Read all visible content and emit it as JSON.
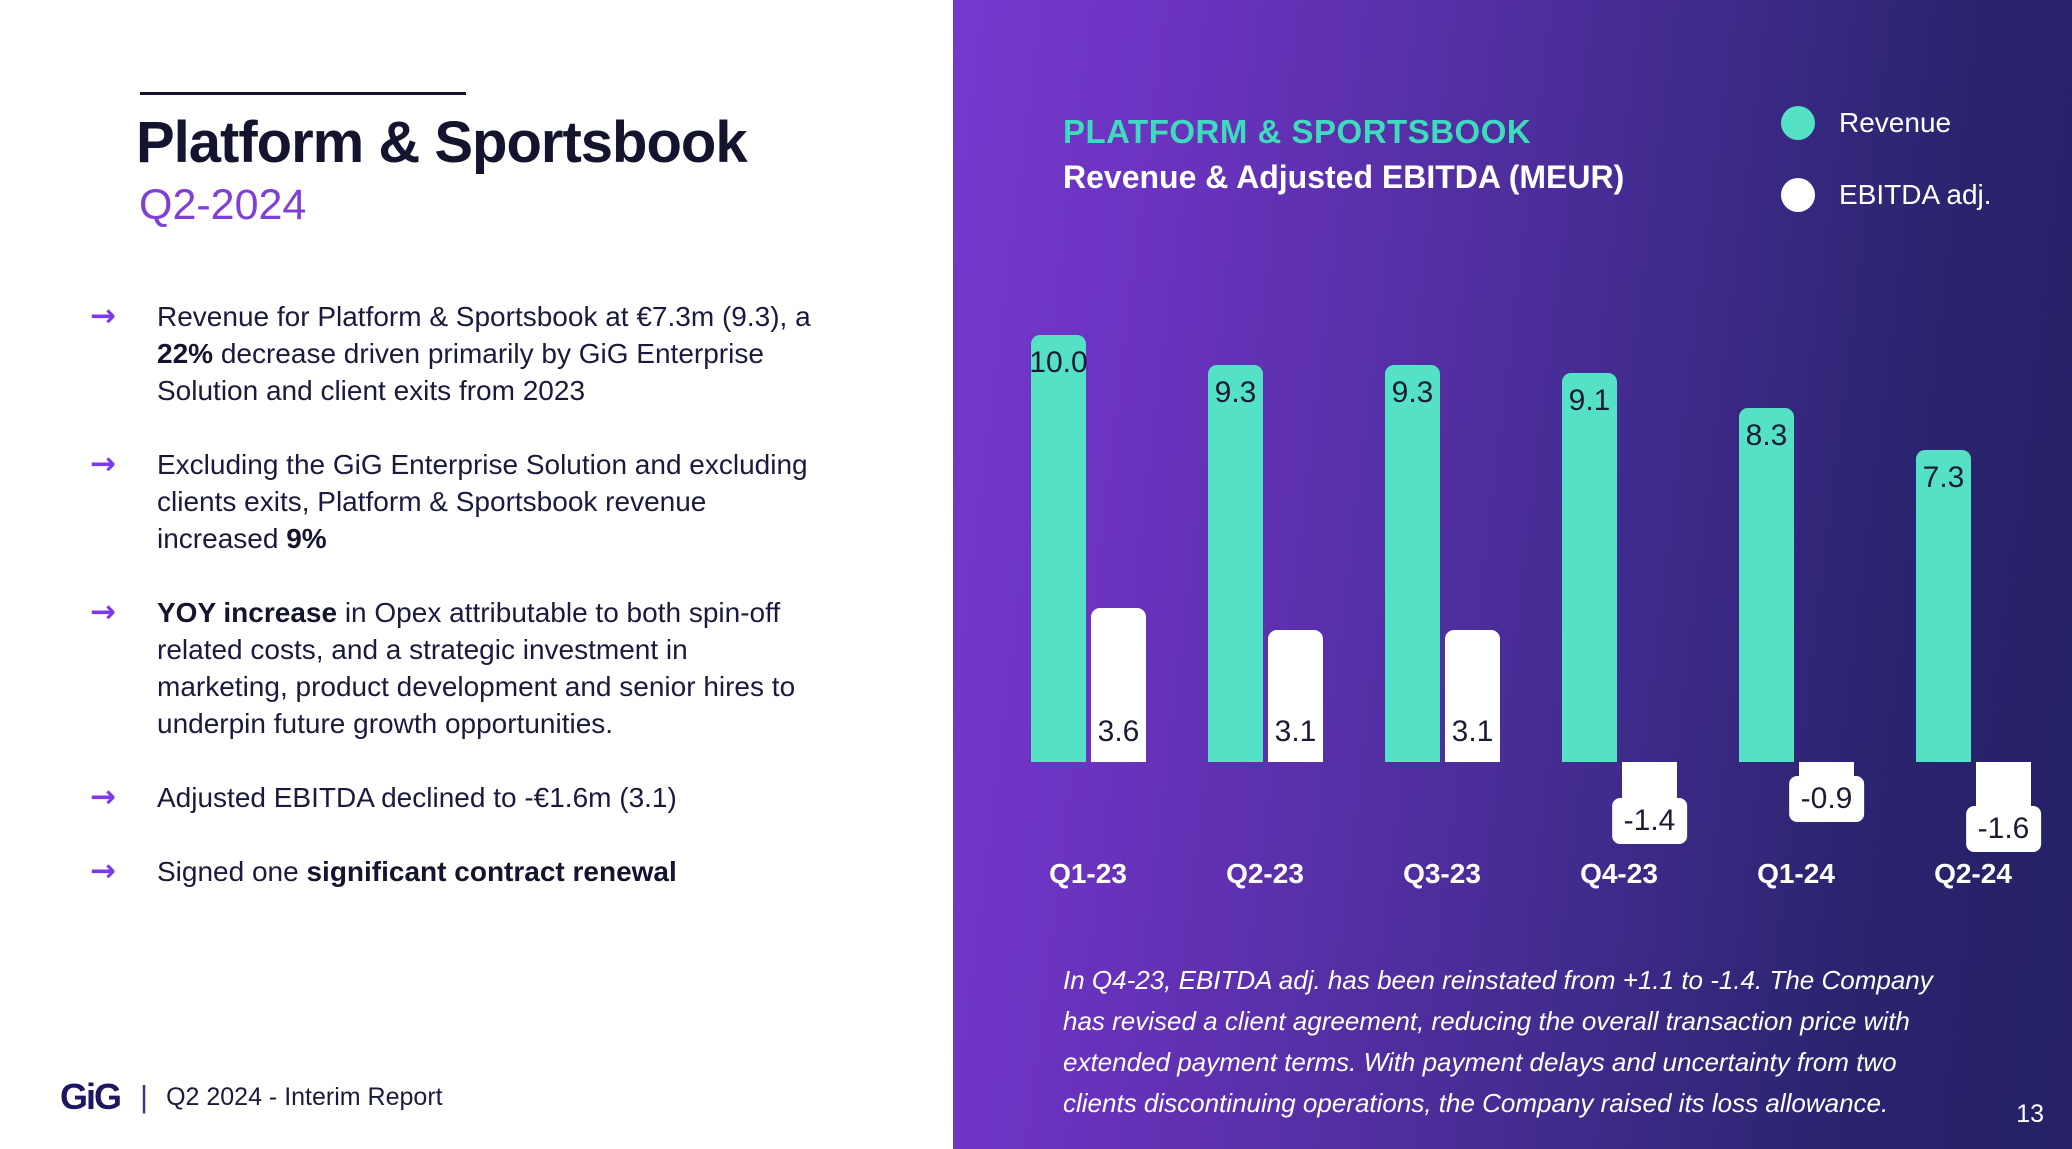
{
  "left": {
    "title": "Platform & Sportsbook",
    "subtitle": "Q2-2024",
    "bullet_marker": "→",
    "bullets": [
      {
        "segments": [
          {
            "text": "Revenue for Platform & Sportsbook at €7.3m (9.3), a ",
            "bold": false
          },
          {
            "text": "22%",
            "bold": true
          },
          {
            "text": " decrease driven primarily by GiG Enterprise Solution and client exits from 2023",
            "bold": false
          }
        ]
      },
      {
        "segments": [
          {
            "text": "Excluding the GiG Enterprise Solution and excluding clients exits, Platform & Sportsbook revenue increased ",
            "bold": false
          },
          {
            "text": "9%",
            "bold": true
          }
        ]
      },
      {
        "segments": [
          {
            "text": "YOY increase",
            "bold": true
          },
          {
            "text": " in Opex attributable to both spin-off related costs, and a strategic investment in marketing, product development and senior hires to underpin future growth opportunities.",
            "bold": false
          }
        ]
      },
      {
        "segments": [
          {
            "text": "Adjusted EBITDA declined to -€1.6m (3.1)",
            "bold": false
          }
        ]
      },
      {
        "segments": [
          {
            "text": "Signed one ",
            "bold": false
          },
          {
            "text": "significant contract renewal",
            "bold": true
          }
        ]
      }
    ],
    "footer": {
      "logo": "GiG",
      "separator": "|",
      "text": "Q2 2024 - Interim Report"
    }
  },
  "right": {
    "header_line1": "PLATFORM & SPORTSBOOK",
    "header_line2": "Revenue & Adjusted EBITDA (MEUR)",
    "legend": [
      {
        "label": "Revenue",
        "color": "#55E1C5"
      },
      {
        "label": "EBITDA adj.",
        "color": "#FFFFFF"
      }
    ],
    "footnote": "In Q4-23, EBITDA adj. has been reinstated from +1.1 to -1.4. The Company has revised a client agreement, reducing the overall transaction price with extended payment terms. With payment delays and uncertainty from two clients discontinuing operations, the Company raised its loss allowance.",
    "page_number": "13"
  },
  "chart_data": {
    "type": "bar",
    "title": "PLATFORM & SPORTSBOOK — Revenue & Adjusted EBITDA (MEUR)",
    "categories": [
      "Q1-23",
      "Q2-23",
      "Q3-23",
      "Q4-23",
      "Q1-24",
      "Q2-24"
    ],
    "series": [
      {
        "name": "Revenue",
        "values": [
          10.0,
          9.3,
          9.3,
          9.1,
          8.3,
          7.3
        ],
        "color": "#55E1C5"
      },
      {
        "name": "EBITDA adj.",
        "values": [
          3.6,
          3.1,
          3.1,
          -1.4,
          -0.9,
          -1.6
        ],
        "color": "#FFFFFF"
      }
    ],
    "value_labels": true,
    "axes_hidden": true,
    "baseline": 0,
    "legend_position": "top-right"
  },
  "colors": {
    "teal_accent": "#55E1C5",
    "kicker_teal": "#3EDCBD",
    "panel_gradient_start": "#7439CE",
    "panel_gradient_end": "#252164",
    "title_navy": "#14142F",
    "subtitle_purple": "#8040D8",
    "arrow_purple": "#7C3AED",
    "bar_label_dark": "#1B1B33"
  }
}
